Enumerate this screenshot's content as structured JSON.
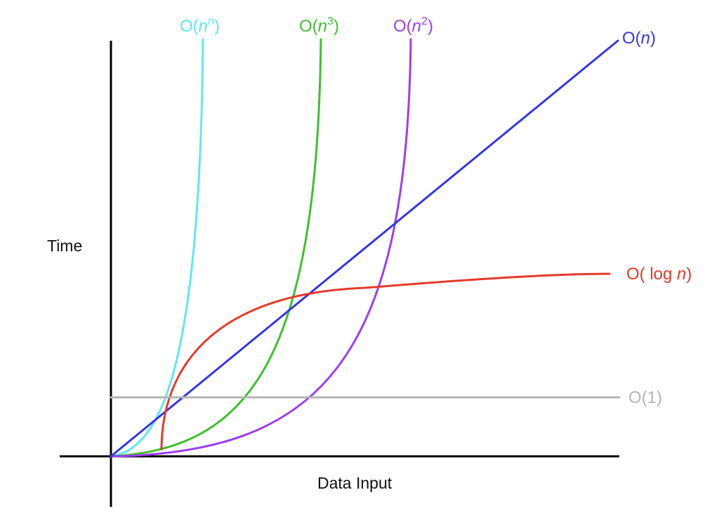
{
  "chart_data": {
    "type": "line",
    "title": "",
    "xlabel": "Data Input",
    "ylabel": "Time",
    "grid": false,
    "legend": "curve labels at line ends",
    "series": [
      {
        "name": "O(n^n)",
        "label_base": "O(",
        "label_var": "n",
        "label_sup": "n",
        "label_mid": "",
        "label_tail": ")",
        "color": "#5de8f2"
      },
      {
        "name": "O(n^3)",
        "label_base": "O(",
        "label_var": "n",
        "label_sup": "3",
        "label_mid": "",
        "label_tail": ")",
        "color": "#3fbf2f"
      },
      {
        "name": "O(n^2)",
        "label_base": "O(",
        "label_var": "n",
        "label_sup": "2",
        "label_mid": "",
        "label_tail": ")",
        "color": "#9b3ff0"
      },
      {
        "name": "O(n)",
        "label_base": "O(",
        "label_var": "n",
        "label_sup": "",
        "label_mid": "",
        "label_tail": ")",
        "color": "#3536e3"
      },
      {
        "name": "O( log n)",
        "label_base": "O(",
        "label_var": "n",
        "label_sup": "",
        "label_mid": " log ",
        "label_tail": ")",
        "color": "#e53a2a"
      },
      {
        "name": "O(1)",
        "label_base": "O(1)",
        "label_var": "",
        "label_sup": "",
        "label_mid": "",
        "label_tail": "",
        "color": "#b4b4b4"
      }
    ]
  }
}
